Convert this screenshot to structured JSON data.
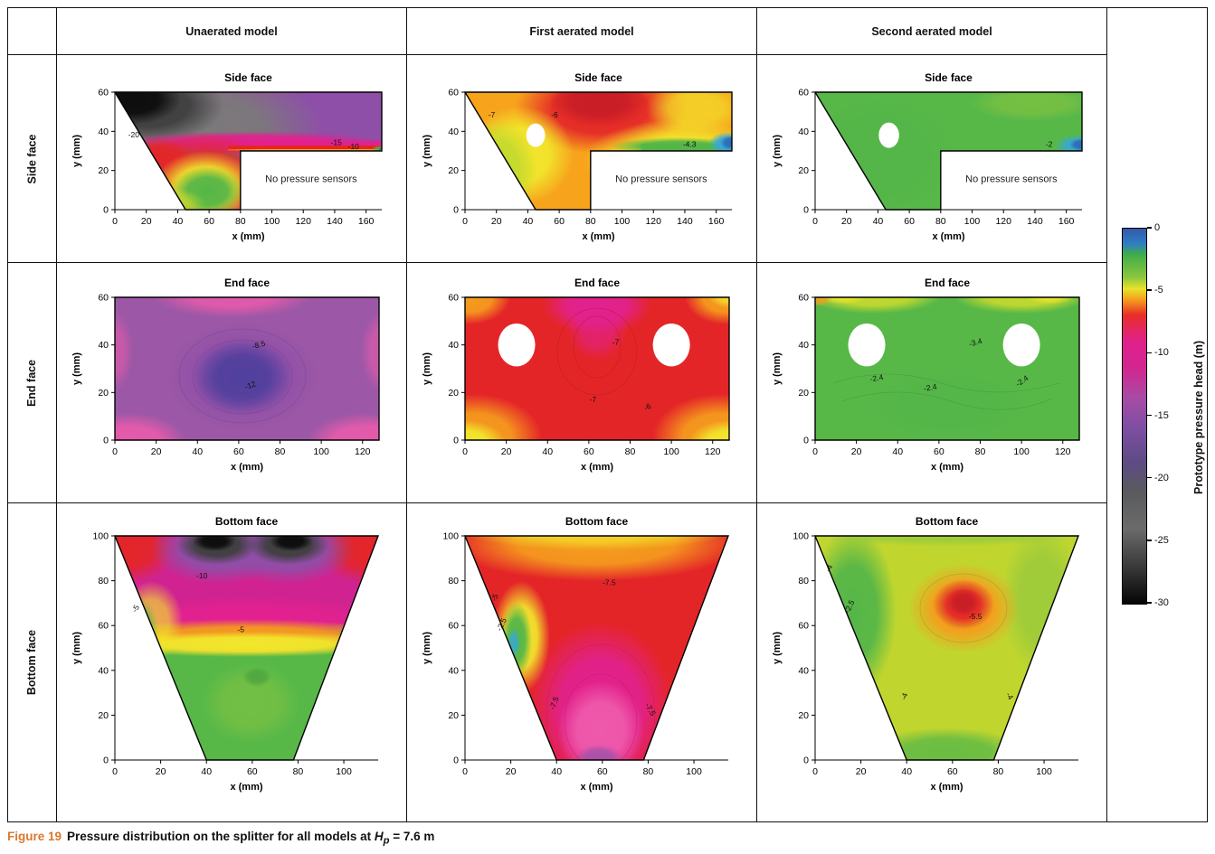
{
  "columns": [
    "Unaerated model",
    "First aerated model",
    "Second aerated model"
  ],
  "rows": [
    "Side face",
    "End face",
    "Bottom face"
  ],
  "caption": {
    "label": "Figure 19",
    "text1": "Pressure distribution on the splitter for all models at ",
    "var": "H",
    "var_sub": "p",
    "text2": " = 7.6 m"
  },
  "colorbar": {
    "label": "Prototype pressure head (m)",
    "range": [
      0,
      -30
    ],
    "ticks": [
      {
        "v": 0,
        "label": "0"
      },
      {
        "v": -5,
        "label": "-5"
      },
      {
        "v": -10,
        "label": "-10"
      },
      {
        "v": -15,
        "label": "-15"
      },
      {
        "v": -20,
        "label": "-20"
      },
      {
        "v": -25,
        "label": "-25"
      },
      {
        "v": -30,
        "label": "-30"
      }
    ],
    "stops": [
      {
        "p": 0,
        "c": "#3558a8"
      },
      {
        "p": 4,
        "c": "#2e7ec4"
      },
      {
        "p": 7,
        "c": "#41ad49"
      },
      {
        "p": 13,
        "c": "#8cc63f"
      },
      {
        "p": 16,
        "c": "#e8e32b"
      },
      {
        "p": 19,
        "c": "#f59d1d"
      },
      {
        "p": 23,
        "c": "#e82e28"
      },
      {
        "p": 30,
        "c": "#e0218c"
      },
      {
        "p": 37,
        "c": "#d3258f"
      },
      {
        "p": 45,
        "c": "#a84ba5"
      },
      {
        "p": 53,
        "c": "#7e4ea3"
      },
      {
        "p": 62,
        "c": "#5f4b86"
      },
      {
        "p": 70,
        "c": "#595a5e"
      },
      {
        "p": 80,
        "c": "#6b6b6b"
      },
      {
        "p": 90,
        "c": "#3a3a3a"
      },
      {
        "p": 100,
        "c": "#050505"
      }
    ]
  },
  "chart_data": [
    {
      "type": "contour",
      "model": "Unaerated model",
      "face": "Side face",
      "title": "Side face",
      "xlabel": "x (mm)",
      "ylabel": "y (mm)",
      "xlim": [
        0,
        170
      ],
      "ylim": [
        0,
        60
      ],
      "xticks": [
        0,
        20,
        40,
        60,
        80,
        100,
        120,
        140,
        160
      ],
      "yticks": [
        0,
        20,
        40,
        60
      ],
      "outline": [
        [
          0,
          60
        ],
        [
          170,
          60
        ],
        [
          170,
          30
        ],
        [
          80,
          30
        ],
        [
          80,
          0
        ],
        [
          45,
          0
        ]
      ],
      "holes": [],
      "note": {
        "t": "No pressure sensors",
        "x": 125,
        "y": 14
      },
      "annotations": [
        {
          "t": "-20",
          "x": 12,
          "y": 37,
          "rot": 0
        },
        {
          "t": "-15",
          "x": 141,
          "y": 33,
          "rot": 0
        },
        {
          "t": "-10",
          "x": 152,
          "y": 31,
          "rot": 0
        }
      ]
    },
    {
      "type": "contour",
      "model": "First aerated model",
      "face": "Side face",
      "title": "Side face",
      "xlabel": "x (mm)",
      "ylabel": "y (mm)",
      "xlim": [
        0,
        170
      ],
      "ylim": [
        0,
        60
      ],
      "xticks": [
        0,
        20,
        40,
        60,
        80,
        100,
        120,
        140,
        160
      ],
      "yticks": [
        0,
        20,
        40,
        60
      ],
      "outline": [
        [
          0,
          60
        ],
        [
          170,
          60
        ],
        [
          170,
          30
        ],
        [
          80,
          30
        ],
        [
          80,
          0
        ],
        [
          45,
          0
        ]
      ],
      "holes": [
        {
          "x": 45,
          "y": 38,
          "r": 6
        }
      ],
      "note": {
        "t": "No pressure sensors",
        "x": 125,
        "y": 14
      },
      "annotations": [
        {
          "t": "-7",
          "x": 17,
          "y": 47,
          "rot": 0
        },
        {
          "t": "-6",
          "x": 57,
          "y": 47,
          "rot": 0
        },
        {
          "t": "-4.3",
          "x": 143,
          "y": 32,
          "rot": 0
        }
      ]
    },
    {
      "type": "contour",
      "model": "Second aerated model",
      "face": "Side face",
      "title": "Side face",
      "xlabel": "x (mm)",
      "ylabel": "y (mm)",
      "xlim": [
        0,
        170
      ],
      "ylim": [
        0,
        60
      ],
      "xticks": [
        0,
        20,
        40,
        60,
        80,
        100,
        120,
        140,
        160
      ],
      "yticks": [
        0,
        20,
        40,
        60
      ],
      "outline": [
        [
          0,
          60
        ],
        [
          170,
          60
        ],
        [
          170,
          30
        ],
        [
          80,
          30
        ],
        [
          80,
          0
        ],
        [
          45,
          0
        ]
      ],
      "holes": [
        {
          "x": 47,
          "y": 38,
          "r": 6.5
        }
      ],
      "note": {
        "t": "No pressure sensors",
        "x": 125,
        "y": 14
      },
      "annotations": [
        {
          "t": "-2",
          "x": 149,
          "y": 32,
          "rot": 0
        }
      ]
    },
    {
      "type": "contour",
      "model": "Unaerated model",
      "face": "End face",
      "title": "End face",
      "xlabel": "x (mm)",
      "ylabel": "y (mm)",
      "xlim": [
        0,
        128
      ],
      "ylim": [
        0,
        60
      ],
      "xticks": [
        0,
        20,
        40,
        60,
        80,
        100,
        120
      ],
      "yticks": [
        0,
        20,
        40,
        60
      ],
      "outline": [
        [
          0,
          60
        ],
        [
          128,
          60
        ],
        [
          128,
          0
        ],
        [
          0,
          0
        ]
      ],
      "holes": [],
      "annotations": [
        {
          "t": "-8.5",
          "x": 70,
          "y": 39,
          "rot": -15
        },
        {
          "t": "-12",
          "x": 66,
          "y": 22,
          "rot": -20
        }
      ]
    },
    {
      "type": "contour",
      "model": "First aerated model",
      "face": "End face",
      "title": "End face",
      "xlabel": "x (mm)",
      "ylabel": "y (mm)",
      "xlim": [
        0,
        128
      ],
      "ylim": [
        0,
        60
      ],
      "xticks": [
        0,
        20,
        40,
        60,
        80,
        100,
        120
      ],
      "yticks": [
        0,
        20,
        40,
        60
      ],
      "outline": [
        [
          0,
          60
        ],
        [
          128,
          60
        ],
        [
          128,
          0
        ],
        [
          0,
          0
        ]
      ],
      "holes": [
        {
          "x": 25,
          "y": 40,
          "r": 9
        },
        {
          "x": 100,
          "y": 40,
          "r": 9
        }
      ],
      "annotations": [
        {
          "t": "-7",
          "x": 73,
          "y": 40,
          "rot": 0
        },
        {
          "t": "-7",
          "x": 62,
          "y": 16,
          "rot": 0
        },
        {
          "t": "-6",
          "x": 89,
          "y": 13,
          "rot": -30
        }
      ]
    },
    {
      "type": "contour",
      "model": "Second aerated model",
      "face": "End face",
      "title": "End face",
      "xlabel": "x (mm)",
      "ylabel": "y (mm)",
      "xlim": [
        0,
        128
      ],
      "ylim": [
        0,
        60
      ],
      "xticks": [
        0,
        20,
        40,
        60,
        80,
        100,
        120
      ],
      "yticks": [
        0,
        20,
        40,
        60
      ],
      "outline": [
        [
          0,
          60
        ],
        [
          128,
          60
        ],
        [
          128,
          0
        ],
        [
          0,
          0
        ]
      ],
      "holes": [
        {
          "x": 25,
          "y": 40,
          "r": 9
        },
        {
          "x": 100,
          "y": 40,
          "r": 9
        }
      ],
      "annotations": [
        {
          "t": "-3.4",
          "x": 78,
          "y": 40,
          "rot": -15
        },
        {
          "t": "-2.4",
          "x": 30,
          "y": 25,
          "rot": -10
        },
        {
          "t": "-2.4",
          "x": 56,
          "y": 21,
          "rot": -10
        },
        {
          "t": "-2.4",
          "x": 101,
          "y": 24,
          "rot": -35
        }
      ]
    },
    {
      "type": "contour",
      "model": "Unaerated model",
      "face": "Bottom face",
      "title": "Bottom face",
      "xlabel": "x (mm)",
      "ylabel": "y (mm)",
      "xlim": [
        0,
        115
      ],
      "ylim": [
        0,
        100
      ],
      "xticks": [
        0,
        20,
        40,
        60,
        80,
        100
      ],
      "yticks": [
        0,
        20,
        40,
        60,
        80,
        100
      ],
      "outline": [
        [
          0,
          100
        ],
        [
          115,
          100
        ],
        [
          78,
          0
        ],
        [
          40,
          0
        ]
      ],
      "holes": [],
      "annotations": [
        {
          "t": "-10",
          "x": 38,
          "y": 81,
          "rot": 0
        },
        {
          "t": "-5",
          "x": 10,
          "y": 67,
          "rot": -60
        },
        {
          "t": "-5",
          "x": 55,
          "y": 57,
          "rot": 0
        }
      ]
    },
    {
      "type": "contour",
      "model": "First aerated model",
      "face": "Bottom face",
      "title": "Bottom face",
      "xlabel": "x (mm)",
      "ylabel": "y (mm)",
      "xlim": [
        0,
        115
      ],
      "ylim": [
        0,
        100
      ],
      "xticks": [
        0,
        20,
        40,
        60,
        80,
        100
      ],
      "yticks": [
        0,
        20,
        40,
        60,
        80,
        100
      ],
      "outline": [
        [
          0,
          100
        ],
        [
          115,
          100
        ],
        [
          78,
          0
        ],
        [
          40,
          0
        ]
      ],
      "holes": [],
      "annotations": [
        {
          "t": "-5",
          "x": 14,
          "y": 72,
          "rot": -65
        },
        {
          "t": "-2.5",
          "x": 17,
          "y": 60,
          "rot": -65
        },
        {
          "t": "-7.5",
          "x": 63,
          "y": 78,
          "rot": 0
        },
        {
          "t": "-7.5",
          "x": 40,
          "y": 25,
          "rot": -70
        },
        {
          "t": "-7.5",
          "x": 80,
          "y": 22,
          "rot": 60
        }
      ]
    },
    {
      "type": "contour",
      "model": "Second aerated model",
      "face": "Bottom face",
      "title": "Bottom face",
      "xlabel": "x (mm)",
      "ylabel": "y (mm)",
      "xlim": [
        0,
        115
      ],
      "ylim": [
        0,
        100
      ],
      "xticks": [
        0,
        20,
        40,
        60,
        80,
        100
      ],
      "yticks": [
        0,
        20,
        40,
        60,
        80,
        100
      ],
      "outline": [
        [
          0,
          100
        ],
        [
          115,
          100
        ],
        [
          78,
          0
        ],
        [
          40,
          0
        ]
      ],
      "holes": [],
      "annotations": [
        {
          "t": "-4",
          "x": 7,
          "y": 85,
          "rot": -60
        },
        {
          "t": "-2.5",
          "x": 16,
          "y": 68,
          "rot": -65
        },
        {
          "t": "-5.5",
          "x": 70,
          "y": 63,
          "rot": 0
        },
        {
          "t": "-4",
          "x": 40,
          "y": 28,
          "rot": -70
        },
        {
          "t": "-4",
          "x": 84,
          "y": 28,
          "rot": 60
        }
      ]
    }
  ]
}
